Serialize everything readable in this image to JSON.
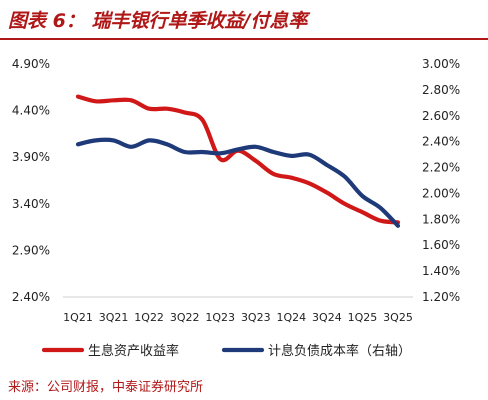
{
  "title": "图表 6： 瑞丰银行单季收益/付息率",
  "source": "来源：公司财报，中泰证券研究所",
  "colors": {
    "title": "#b01818",
    "series_1": "#d01818",
    "series_2": "#1f3a78"
  },
  "chart_data": {
    "type": "line",
    "x": [
      "1Q21",
      "2Q21",
      "3Q21",
      "4Q21",
      "1Q22",
      "2Q22",
      "3Q22",
      "4Q22",
      "1Q23",
      "2Q23",
      "3Q23",
      "4Q23",
      "1Q24",
      "2Q24",
      "3Q24",
      "4Q24",
      "1Q25",
      "2Q25",
      "3Q25"
    ],
    "x_tick_labels": [
      "1Q21",
      "3Q21",
      "1Q22",
      "3Q22",
      "1Q23",
      "3Q23",
      "1Q24",
      "3Q24",
      "1Q25",
      "3Q25"
    ],
    "y_left": {
      "ticks": [
        "2.40%",
        "2.90%",
        "3.40%",
        "3.90%",
        "4.40%",
        "4.90%"
      ],
      "ylim": [
        2.4,
        4.9
      ]
    },
    "y_right": {
      "ticks": [
        "1.20%",
        "1.40%",
        "1.60%",
        "1.80%",
        "2.00%",
        "2.20%",
        "2.40%",
        "2.60%",
        "2.80%",
        "3.00%"
      ],
      "ylim": [
        1.2,
        3.0
      ]
    },
    "series": [
      {
        "name": "生息资产收益率",
        "axis": "left",
        "values": [
          4.55,
          4.5,
          4.51,
          4.51,
          4.42,
          4.42,
          4.38,
          4.3,
          3.88,
          3.97,
          3.86,
          3.72,
          3.68,
          3.62,
          3.52,
          3.4,
          3.31,
          3.22,
          3.2
        ]
      },
      {
        "name": "计息负债成本率（右轴）",
        "axis": "right",
        "values": [
          2.38,
          2.41,
          2.41,
          2.36,
          2.41,
          2.38,
          2.32,
          2.32,
          2.31,
          2.34,
          2.36,
          2.32,
          2.29,
          2.3,
          2.22,
          2.13,
          1.98,
          1.89,
          1.75
        ]
      }
    ],
    "grid": false,
    "legend_position": "bottom"
  }
}
